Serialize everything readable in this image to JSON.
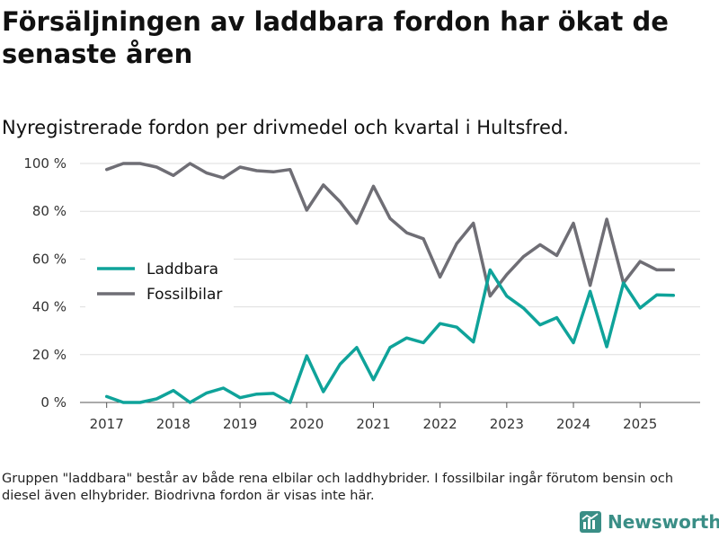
{
  "header": {
    "title": "Försäljningen av laddbara fordon har ökat de senaste åren",
    "subtitle": "Nyregistrerade fordon per drivmedel och kvartal i Hultsfred."
  },
  "footer": {
    "note": "Gruppen \"laddbara\" består av både rena elbilar och laddhybrider. I fossilbilar ingår förutom bensin och diesel även elhybrider. Biodrivna fordon är visas inte här.",
    "brand": "Newsworthy"
  },
  "colors": {
    "laddbara": "#0fa39a",
    "fossil": "#6f6e75",
    "grid": "#dddddd",
    "brand": "#3a8e86"
  },
  "chart_data": {
    "type": "line",
    "title": "Försäljningen av laddbara fordon har ökat de senaste åren",
    "subtitle": "Nyregistrerade fordon per drivmedel och kvartal i Hultsfred.",
    "xlabel": "",
    "ylabel": "",
    "x": [
      2017.0,
      2017.25,
      2017.5,
      2017.75,
      2018.0,
      2018.25,
      2018.5,
      2018.75,
      2019.0,
      2019.25,
      2019.5,
      2019.75,
      2020.0,
      2020.25,
      2020.5,
      2020.75,
      2021.0,
      2021.25,
      2021.5,
      2021.75,
      2022.0,
      2022.25,
      2022.5,
      2022.75,
      2023.0,
      2023.25,
      2023.5,
      2023.75,
      2024.0,
      2024.25,
      2024.5,
      2024.75,
      2025.0,
      2025.25,
      2025.5
    ],
    "xlim": [
      2016.6,
      2025.9
    ],
    "xticks": [
      2017,
      2018,
      2019,
      2020,
      2021,
      2022,
      2023,
      2024,
      2025
    ],
    "xtick_labels": [
      "2017",
      "2018",
      "2019",
      "2020",
      "2021",
      "2022",
      "2023",
      "2024",
      "2025"
    ],
    "ylim": [
      0,
      100
    ],
    "yticks": [
      0,
      20,
      40,
      60,
      80,
      100
    ],
    "ytick_labels": [
      "0 %",
      "20 %",
      "40 %",
      "60 %",
      "80 %",
      "100 %"
    ],
    "grid": true,
    "legend_position": "left",
    "series": [
      {
        "name": "Laddbara",
        "key": "laddbara",
        "values": [
          2.5,
          0,
          0,
          1.5,
          5,
          0,
          4,
          6,
          2,
          3.5,
          3.8,
          0,
          19.5,
          4.5,
          16,
          23,
          9.5,
          23,
          27,
          25,
          33,
          31.5,
          25.3,
          55.5,
          44.5,
          39.5,
          32.5,
          35.5,
          25,
          46.5,
          23.3,
          50,
          39.5,
          45,
          44.8
        ]
      },
      {
        "name": "Fossilbilar",
        "key": "fossil",
        "values": [
          97.5,
          100,
          100,
          98.5,
          95,
          100,
          96,
          94,
          98.5,
          97,
          96.5,
          97.5,
          80.5,
          91,
          84,
          75,
          90.5,
          77,
          71,
          68.5,
          52.5,
          66.5,
          75,
          44.5,
          53.5,
          61,
          66,
          61.5,
          75,
          49,
          76.7,
          50,
          59,
          55.5,
          55.5
        ]
      }
    ]
  }
}
